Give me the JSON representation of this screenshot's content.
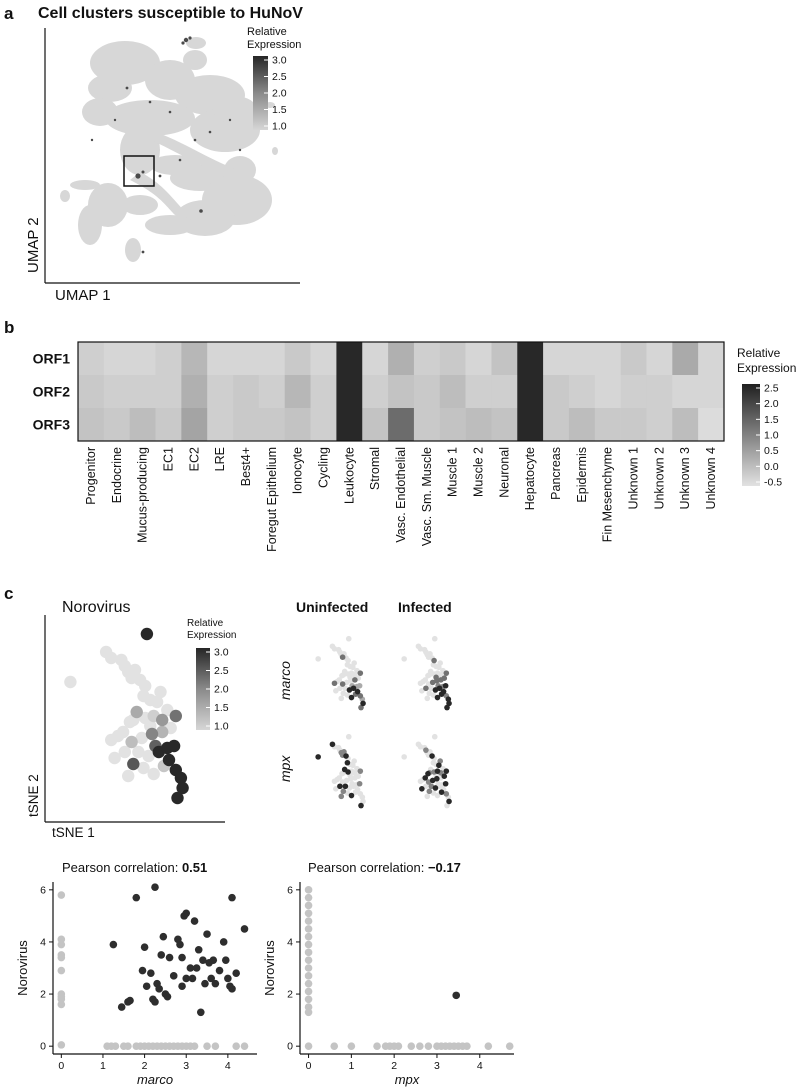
{
  "panels": {
    "a": "a",
    "b": "b",
    "c": "c"
  },
  "panel_a": {
    "title": "Cell clusters susceptible to HuNoV",
    "xlabel": "UMAP 1",
    "ylabel": "UMAP 2",
    "legend_title_1": "Relative",
    "legend_title_2": "Expression",
    "legend_ticks": [
      "3.0",
      "2.5",
      "2.0",
      "1.5",
      "1.0"
    ]
  },
  "panel_b_legend": {
    "title_1": "Relative",
    "title_2": "Expression",
    "ticks": [
      "2.5",
      "2.0",
      "1.5",
      "1.0",
      "0.5",
      "0.0",
      "-0.5"
    ]
  },
  "panel_c": {
    "tsne_title": "Norovirus",
    "tsne_xlabel": "tSNE 1",
    "tsne_ylabel": "tSNE 2",
    "legend_title_1": "Relative",
    "legend_title_2": "Expression",
    "legend_ticks": [
      "3.0",
      "2.5",
      "2.0",
      "1.5",
      "1.0"
    ],
    "col_uninfected": "Uninfected",
    "col_infected": "Infected",
    "row_marco": "marco",
    "row_mpx": "mpx",
    "corr1_prefix": "Pearson correlation: ",
    "corr1_value": "0.51",
    "corr2_prefix": "Pearson correlation: ",
    "corr2_value": "−0.17"
  },
  "chart_data": [
    {
      "type": "heatmap",
      "id": "orf-heatmap",
      "rows": [
        "ORF1",
        "ORF2",
        "ORF3"
      ],
      "columns": [
        "Progenitor",
        "Endocrine",
        "Mucus-producing",
        "EC1",
        "EC2",
        "LRE",
        "Best4+",
        "Foregut Epithelium",
        "Ionocyte",
        "Cycling",
        "Leukocyte",
        "Stromal",
        "Vasc. Endothelial",
        "Vasc. Sm. Muscle",
        "Muscle 1",
        "Muscle 2",
        "Neuronal",
        "Hepatocyte",
        "Pancreas",
        "Epidermis",
        "Fin Mesenchyme",
        "Unknown 1",
        "Unknown 2",
        "Unknown 3",
        "Unknown 4"
      ],
      "values": [
        [
          -0.2,
          -0.3,
          -0.3,
          -0.2,
          0.2,
          -0.3,
          -0.3,
          -0.3,
          -0.1,
          -0.3,
          2.5,
          -0.3,
          0.3,
          -0.2,
          -0.1,
          -0.3,
          0.0,
          2.5,
          -0.3,
          -0.3,
          -0.3,
          -0.1,
          -0.3,
          0.4,
          -0.3
        ],
        [
          -0.1,
          -0.2,
          -0.2,
          -0.2,
          0.3,
          -0.2,
          -0.1,
          -0.2,
          0.2,
          -0.2,
          2.5,
          -0.2,
          0.0,
          -0.1,
          0.1,
          -0.2,
          -0.2,
          2.5,
          -0.1,
          -0.2,
          -0.3,
          -0.2,
          -0.2,
          -0.3,
          -0.3
        ],
        [
          0.0,
          -0.1,
          0.1,
          -0.1,
          0.5,
          -0.2,
          -0.1,
          -0.1,
          0.0,
          -0.2,
          2.5,
          0.0,
          1.4,
          -0.1,
          0.0,
          0.1,
          0.0,
          2.5,
          -0.1,
          0.1,
          -0.1,
          -0.1,
          -0.2,
          0.1,
          -0.4
        ]
      ],
      "colorbar": {
        "min": -0.5,
        "max": 2.5,
        "label": "Relative Expression"
      }
    },
    {
      "type": "scatter",
      "id": "marco-scatter",
      "title": "Pearson correlation: 0.51",
      "xlabel": "marco",
      "ylabel": "Norovirus",
      "xlim": [
        -0.2,
        4.7
      ],
      "ylim": [
        -0.3,
        6.3
      ],
      "xticks": [
        0,
        1,
        2,
        3,
        4
      ],
      "yticks": [
        0,
        2,
        4,
        6
      ],
      "series": [
        {
          "name": "gray",
          "points": [
            [
              0,
              5.8
            ],
            [
              0,
              4.1
            ],
            [
              0,
              3.9
            ],
            [
              0,
              3.5
            ],
            [
              0,
              3.4
            ],
            [
              0,
              2.9
            ],
            [
              0,
              2.0
            ],
            [
              0,
              1.9
            ],
            [
              0,
              1.8
            ],
            [
              0,
              1.6
            ],
            [
              0,
              0.05
            ],
            [
              1.1,
              0
            ],
            [
              1.2,
              0
            ],
            [
              1.3,
              0
            ],
            [
              1.5,
              0
            ],
            [
              1.6,
              0
            ],
            [
              1.8,
              0
            ],
            [
              1.9,
              0
            ],
            [
              2.0,
              0
            ],
            [
              2.1,
              0
            ],
            [
              2.2,
              0
            ],
            [
              2.3,
              0
            ],
            [
              2.4,
              0
            ],
            [
              2.5,
              0
            ],
            [
              2.6,
              0
            ],
            [
              2.7,
              0
            ],
            [
              2.8,
              0
            ],
            [
              2.9,
              0
            ],
            [
              3.0,
              0
            ],
            [
              3.1,
              0
            ],
            [
              3.2,
              0
            ],
            [
              3.5,
              0
            ],
            [
              3.7,
              0
            ],
            [
              4.2,
              0
            ],
            [
              4.4,
              0
            ]
          ]
        },
        {
          "name": "dark",
          "points": [
            [
              1.25,
              3.9
            ],
            [
              1.45,
              1.5
            ],
            [
              1.6,
              1.7
            ],
            [
              1.65,
              1.75
            ],
            [
              1.8,
              5.7
            ],
            [
              1.95,
              2.9
            ],
            [
              2.0,
              3.8
            ],
            [
              2.05,
              2.3
            ],
            [
              2.15,
              2.8
            ],
            [
              2.2,
              1.8
            ],
            [
              2.25,
              6.1
            ],
            [
              2.25,
              1.7
            ],
            [
              2.3,
              2.4
            ],
            [
              2.35,
              2.2
            ],
            [
              2.4,
              3.5
            ],
            [
              2.45,
              4.2
            ],
            [
              2.5,
              2.0
            ],
            [
              2.55,
              1.9
            ],
            [
              2.6,
              3.4
            ],
            [
              2.7,
              2.7
            ],
            [
              2.8,
              4.1
            ],
            [
              2.85,
              3.9
            ],
            [
              2.9,
              3.4
            ],
            [
              2.9,
              2.3
            ],
            [
              2.95,
              5.0
            ],
            [
              3.0,
              5.1
            ],
            [
              3.1,
              3.0
            ],
            [
              3.15,
              2.6
            ],
            [
              3.2,
              4.8
            ],
            [
              3.25,
              3.0
            ],
            [
              3.3,
              3.7
            ],
            [
              3.35,
              1.3
            ],
            [
              3.4,
              3.3
            ],
            [
              3.45,
              2.4
            ],
            [
              3.5,
              4.3
            ],
            [
              3.55,
              3.2
            ],
            [
              3.6,
              2.6
            ],
            [
              3.65,
              3.3
            ],
            [
              3.7,
              2.4
            ],
            [
              3.8,
              2.9
            ],
            [
              3.9,
              4.0
            ],
            [
              3.95,
              3.3
            ],
            [
              4.0,
              2.6
            ],
            [
              4.05,
              2.3
            ],
            [
              4.1,
              5.7
            ],
            [
              4.2,
              2.8
            ],
            [
              4.4,
              4.5
            ],
            [
              4.1,
              2.2
            ],
            [
              3.0,
              2.6
            ]
          ]
        }
      ]
    },
    {
      "type": "scatter",
      "id": "mpx-scatter",
      "title": "Pearson correlation: −0.17",
      "xlabel": "mpx",
      "ylabel": "Norovirus",
      "xlim": [
        -0.2,
        4.8
      ],
      "ylim": [
        -0.3,
        6.3
      ],
      "xticks": [
        0,
        1,
        2,
        3,
        4
      ],
      "yticks": [
        0,
        2,
        4,
        6
      ],
      "series": [
        {
          "name": "gray",
          "points": [
            [
              0,
              6.0
            ],
            [
              0,
              5.7
            ],
            [
              0,
              5.4
            ],
            [
              0,
              5.1
            ],
            [
              0,
              4.8
            ],
            [
              0,
              4.5
            ],
            [
              0,
              4.2
            ],
            [
              0,
              3.9
            ],
            [
              0,
              3.6
            ],
            [
              0,
              3.3
            ],
            [
              0,
              3.0
            ],
            [
              0,
              2.7
            ],
            [
              0,
              2.4
            ],
            [
              0,
              2.1
            ],
            [
              0,
              1.8
            ],
            [
              0,
              1.5
            ],
            [
              0,
              1.3
            ],
            [
              0,
              0
            ],
            [
              0.6,
              0
            ],
            [
              1.0,
              0
            ],
            [
              1.6,
              0
            ],
            [
              1.8,
              0
            ],
            [
              1.9,
              0
            ],
            [
              2.0,
              0
            ],
            [
              2.1,
              0
            ],
            [
              2.4,
              0
            ],
            [
              2.6,
              0
            ],
            [
              2.8,
              0
            ],
            [
              3.0,
              0
            ],
            [
              3.1,
              0
            ],
            [
              3.2,
              0
            ],
            [
              3.3,
              0
            ],
            [
              3.4,
              0
            ],
            [
              3.5,
              0
            ],
            [
              3.6,
              0
            ],
            [
              3.7,
              0
            ],
            [
              4.2,
              0
            ],
            [
              4.7,
              0
            ]
          ]
        },
        {
          "name": "dark",
          "points": [
            [
              3.45,
              1.95
            ]
          ]
        }
      ]
    },
    {
      "type": "scatter",
      "id": "norovirus-tsne",
      "title": "Norovirus",
      "xlabel": "tSNE 1",
      "ylabel": "tSNE 2",
      "xlim": [
        0,
        10
      ],
      "ylim": [
        0,
        10
      ],
      "colorbar": {
        "min": 1.0,
        "max": 3.0,
        "label": "Relative Expression"
      },
      "points": [
        [
          5.7,
          9.2,
          3.0
        ],
        [
          1.2,
          6.8,
          1.0
        ],
        [
          3.3,
          8.3,
          1.0
        ],
        [
          3.6,
          8.0,
          1.0
        ],
        [
          4.2,
          7.9,
          1.0
        ],
        [
          4.4,
          7.6,
          1.0
        ],
        [
          4.6,
          7.3,
          1.0
        ],
        [
          4.8,
          7.0,
          1.0
        ],
        [
          5.0,
          7.4,
          1.0
        ],
        [
          5.3,
          6.9,
          1.0
        ],
        [
          5.6,
          6.6,
          1.0
        ],
        [
          5.5,
          6.1,
          1.0
        ],
        [
          5.9,
          5.9,
          1.0
        ],
        [
          6.3,
          5.8,
          1.0
        ],
        [
          6.5,
          6.3,
          1.0
        ],
        [
          6.9,
          5.4,
          1.0
        ],
        [
          6.1,
          5.1,
          1.2
        ],
        [
          5.6,
          5.0,
          1.0
        ],
        [
          5.1,
          5.3,
          1.6
        ],
        [
          4.7,
          4.8,
          1.0
        ],
        [
          4.3,
          4.3,
          1.0
        ],
        [
          4.0,
          4.1,
          1.0
        ],
        [
          3.6,
          3.9,
          1.0
        ],
        [
          4.8,
          3.8,
          1.4
        ],
        [
          5.4,
          4.0,
          1.0
        ],
        [
          6.0,
          4.2,
          2.0
        ],
        [
          6.6,
          4.3,
          1.5
        ],
        [
          7.1,
          4.5,
          1.0
        ],
        [
          5.2,
          3.3,
          1.0
        ],
        [
          5.8,
          3.1,
          1.0
        ],
        [
          6.4,
          3.3,
          3.0
        ],
        [
          6.9,
          3.5,
          3.0
        ],
        [
          7.3,
          3.6,
          3.0
        ],
        [
          7.0,
          2.9,
          3.0
        ],
        [
          7.4,
          2.4,
          3.0
        ],
        [
          7.7,
          2.0,
          3.0
        ],
        [
          7.8,
          1.5,
          3.0
        ],
        [
          6.7,
          2.6,
          1.3
        ],
        [
          6.2,
          3.6,
          2.4
        ],
        [
          4.4,
          3.3,
          1.0
        ],
        [
          3.8,
          3.0,
          1.0
        ],
        [
          4.9,
          2.7,
          2.5
        ],
        [
          5.5,
          2.5,
          1.0
        ],
        [
          6.1,
          2.2,
          1.0
        ],
        [
          4.6,
          2.1,
          1.0
        ],
        [
          7.4,
          5.1,
          2.2
        ],
        [
          6.6,
          4.9,
          1.8
        ],
        [
          5.9,
          4.6,
          1.0
        ],
        [
          4.9,
          4.9,
          1.0
        ],
        [
          7.5,
          1.0,
          3.0
        ]
      ]
    }
  ]
}
